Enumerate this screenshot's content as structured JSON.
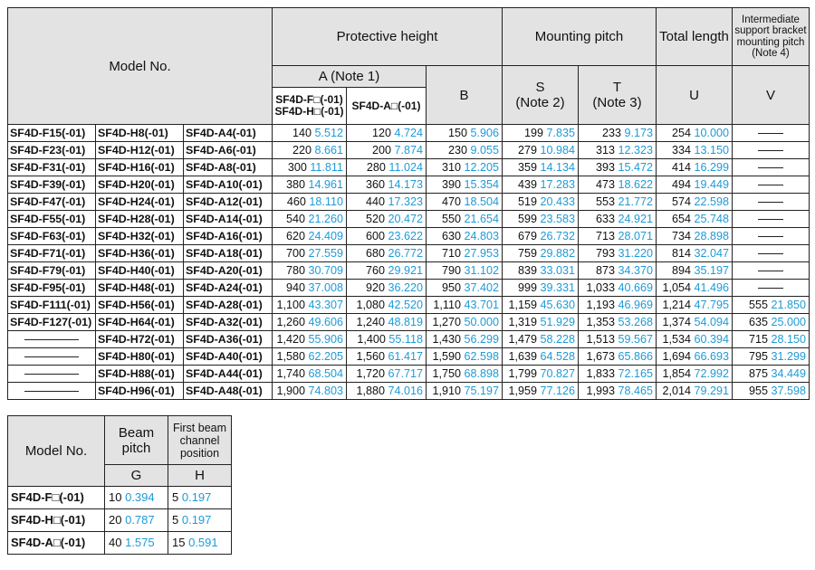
{
  "main_table": {
    "headers": {
      "model_no": "Model No.",
      "protective_height": "Protective height",
      "mounting_pitch": "Mounting pitch",
      "total_length": "Total length",
      "intermediate": "Intermediate support bracket mounting pitch (Note 4)",
      "a_note": "A (Note 1)",
      "a_sub1_line1": "SF4D-F□(-01)",
      "a_sub1_line2": "SF4D-H□(-01)",
      "a_sub2": "SF4D-A□(-01)",
      "b": "B",
      "s_line1": "S",
      "s_line2": "(Note 2)",
      "t_line1": "T",
      "t_line2": "(Note 3)",
      "u": "U",
      "v": "V"
    },
    "rows": [
      {
        "f": "SF4D-F15(-01)",
        "h": "SF4D-H8(-01)",
        "a": "SF4D-A4(-01)",
        "a1": "140",
        "a1i": "5.512",
        "a2": "120",
        "a2i": "4.724",
        "b": "150",
        "bi": "5.906",
        "s": "199",
        "si": "7.835",
        "t": "233",
        "ti": "9.173",
        "u": "254",
        "ui": "10.000",
        "v": "",
        "vi": ""
      },
      {
        "f": "SF4D-F23(-01)",
        "h": "SF4D-H12(-01)",
        "a": "SF4D-A6(-01)",
        "a1": "220",
        "a1i": "8.661",
        "a2": "200",
        "a2i": "7.874",
        "b": "230",
        "bi": "9.055",
        "s": "279",
        "si": "10.984",
        "t": "313",
        "ti": "12.323",
        "u": "334",
        "ui": "13.150",
        "v": "",
        "vi": ""
      },
      {
        "f": "SF4D-F31(-01)",
        "h": "SF4D-H16(-01)",
        "a": "SF4D-A8(-01)",
        "a1": "300",
        "a1i": "11.811",
        "a2": "280",
        "a2i": "11.024",
        "b": "310",
        "bi": "12.205",
        "s": "359",
        "si": "14.134",
        "t": "393",
        "ti": "15.472",
        "u": "414",
        "ui": "16.299",
        "v": "",
        "vi": ""
      },
      {
        "f": "SF4D-F39(-01)",
        "h": "SF4D-H20(-01)",
        "a": "SF4D-A10(-01)",
        "a1": "380",
        "a1i": "14.961",
        "a2": "360",
        "a2i": "14.173",
        "b": "390",
        "bi": "15.354",
        "s": "439",
        "si": "17.283",
        "t": "473",
        "ti": "18.622",
        "u": "494",
        "ui": "19.449",
        "v": "",
        "vi": ""
      },
      {
        "f": "SF4D-F47(-01)",
        "h": "SF4D-H24(-01)",
        "a": "SF4D-A12(-01)",
        "a1": "460",
        "a1i": "18.110",
        "a2": "440",
        "a2i": "17.323",
        "b": "470",
        "bi": "18.504",
        "s": "519",
        "si": "20.433",
        "t": "553",
        "ti": "21.772",
        "u": "574",
        "ui": "22.598",
        "v": "",
        "vi": ""
      },
      {
        "f": "SF4D-F55(-01)",
        "h": "SF4D-H28(-01)",
        "a": "SF4D-A14(-01)",
        "a1": "540",
        "a1i": "21.260",
        "a2": "520",
        "a2i": "20.472",
        "b": "550",
        "bi": "21.654",
        "s": "599",
        "si": "23.583",
        "t": "633",
        "ti": "24.921",
        "u": "654",
        "ui": "25.748",
        "v": "",
        "vi": ""
      },
      {
        "f": "SF4D-F63(-01)",
        "h": "SF4D-H32(-01)",
        "a": "SF4D-A16(-01)",
        "a1": "620",
        "a1i": "24.409",
        "a2": "600",
        "a2i": "23.622",
        "b": "630",
        "bi": "24.803",
        "s": "679",
        "si": "26.732",
        "t": "713",
        "ti": "28.071",
        "u": "734",
        "ui": "28.898",
        "v": "",
        "vi": ""
      },
      {
        "f": "SF4D-F71(-01)",
        "h": "SF4D-H36(-01)",
        "a": "SF4D-A18(-01)",
        "a1": "700",
        "a1i": "27.559",
        "a2": "680",
        "a2i": "26.772",
        "b": "710",
        "bi": "27.953",
        "s": "759",
        "si": "29.882",
        "t": "793",
        "ti": "31.220",
        "u": "814",
        "ui": "32.047",
        "v": "",
        "vi": ""
      },
      {
        "f": "SF4D-F79(-01)",
        "h": "SF4D-H40(-01)",
        "a": "SF4D-A20(-01)",
        "a1": "780",
        "a1i": "30.709",
        "a2": "760",
        "a2i": "29.921",
        "b": "790",
        "bi": "31.102",
        "s": "839",
        "si": "33.031",
        "t": "873",
        "ti": "34.370",
        "u": "894",
        "ui": "35.197",
        "v": "",
        "vi": ""
      },
      {
        "f": "SF4D-F95(-01)",
        "h": "SF4D-H48(-01)",
        "a": "SF4D-A24(-01)",
        "a1": "940",
        "a1i": "37.008",
        "a2": "920",
        "a2i": "36.220",
        "b": "950",
        "bi": "37.402",
        "s": "999",
        "si": "39.331",
        "t": "1,033",
        "ti": "40.669",
        "u": "1,054",
        "ui": "41.496",
        "v": "",
        "vi": ""
      },
      {
        "f": "SF4D-F111(-01)",
        "h": "SF4D-H56(-01)",
        "a": "SF4D-A28(-01)",
        "a1": "1,100",
        "a1i": "43.307",
        "a2": "1,080",
        "a2i": "42.520",
        "b": "1,110",
        "bi": "43.701",
        "s": "1,159",
        "si": "45.630",
        "t": "1,193",
        "ti": "46.969",
        "u": "1,214",
        "ui": "47.795",
        "v": "555",
        "vi": "21.850"
      },
      {
        "f": "SF4D-F127(-01)",
        "h": "SF4D-H64(-01)",
        "a": "SF4D-A32(-01)",
        "a1": "1,260",
        "a1i": "49.606",
        "a2": "1,240",
        "a2i": "48.819",
        "b": "1,270",
        "bi": "50.000",
        "s": "1,319",
        "si": "51.929",
        "t": "1,353",
        "ti": "53.268",
        "u": "1,374",
        "ui": "54.094",
        "v": "635",
        "vi": "25.000"
      },
      {
        "f": "",
        "h": "SF4D-H72(-01)",
        "a": "SF4D-A36(-01)",
        "a1": "1,420",
        "a1i": "55.906",
        "a2": "1,400",
        "a2i": "55.118",
        "b": "1,430",
        "bi": "56.299",
        "s": "1,479",
        "si": "58.228",
        "t": "1,513",
        "ti": "59.567",
        "u": "1,534",
        "ui": "60.394",
        "v": "715",
        "vi": "28.150"
      },
      {
        "f": "",
        "h": "SF4D-H80(-01)",
        "a": "SF4D-A40(-01)",
        "a1": "1,580",
        "a1i": "62.205",
        "a2": "1,560",
        "a2i": "61.417",
        "b": "1,590",
        "bi": "62.598",
        "s": "1,639",
        "si": "64.528",
        "t": "1,673",
        "ti": "65.866",
        "u": "1,694",
        "ui": "66.693",
        "v": "795",
        "vi": "31.299"
      },
      {
        "f": "",
        "h": "SF4D-H88(-01)",
        "a": "SF4D-A44(-01)",
        "a1": "1,740",
        "a1i": "68.504",
        "a2": "1,720",
        "a2i": "67.717",
        "b": "1,750",
        "bi": "68.898",
        "s": "1,799",
        "si": "70.827",
        "t": "1,833",
        "ti": "72.165",
        "u": "1,854",
        "ui": "72.992",
        "v": "875",
        "vi": "34.449"
      },
      {
        "f": "",
        "h": "SF4D-H96(-01)",
        "a": "SF4D-A48(-01)",
        "a1": "1,900",
        "a1i": "74.803",
        "a2": "1,880",
        "a2i": "74.016",
        "b": "1,910",
        "bi": "75.197",
        "s": "1,959",
        "si": "77.126",
        "t": "1,993",
        "ti": "78.465",
        "u": "2,014",
        "ui": "79.291",
        "v": "955",
        "vi": "37.598"
      }
    ]
  },
  "small_table": {
    "headers": {
      "model_no": "Model No.",
      "beam_pitch": "Beam pitch",
      "first_beam": "First beam channel position",
      "g": "G",
      "h": "H"
    },
    "rows": [
      {
        "model": "SF4D-F□(-01)",
        "g": "10",
        "gi": "0.394",
        "h": "5",
        "hi": "0.197"
      },
      {
        "model": "SF4D-H□(-01)",
        "g": "20",
        "gi": "0.787",
        "h": "5",
        "hi": "0.197"
      },
      {
        "model": "SF4D-A□(-01)",
        "g": "40",
        "gi": "1.575",
        "h": "15",
        "hi": "0.591"
      }
    ]
  },
  "colors": {
    "inch_blue": "#1e9bd7",
    "header_gray": "#e3e3e3"
  }
}
